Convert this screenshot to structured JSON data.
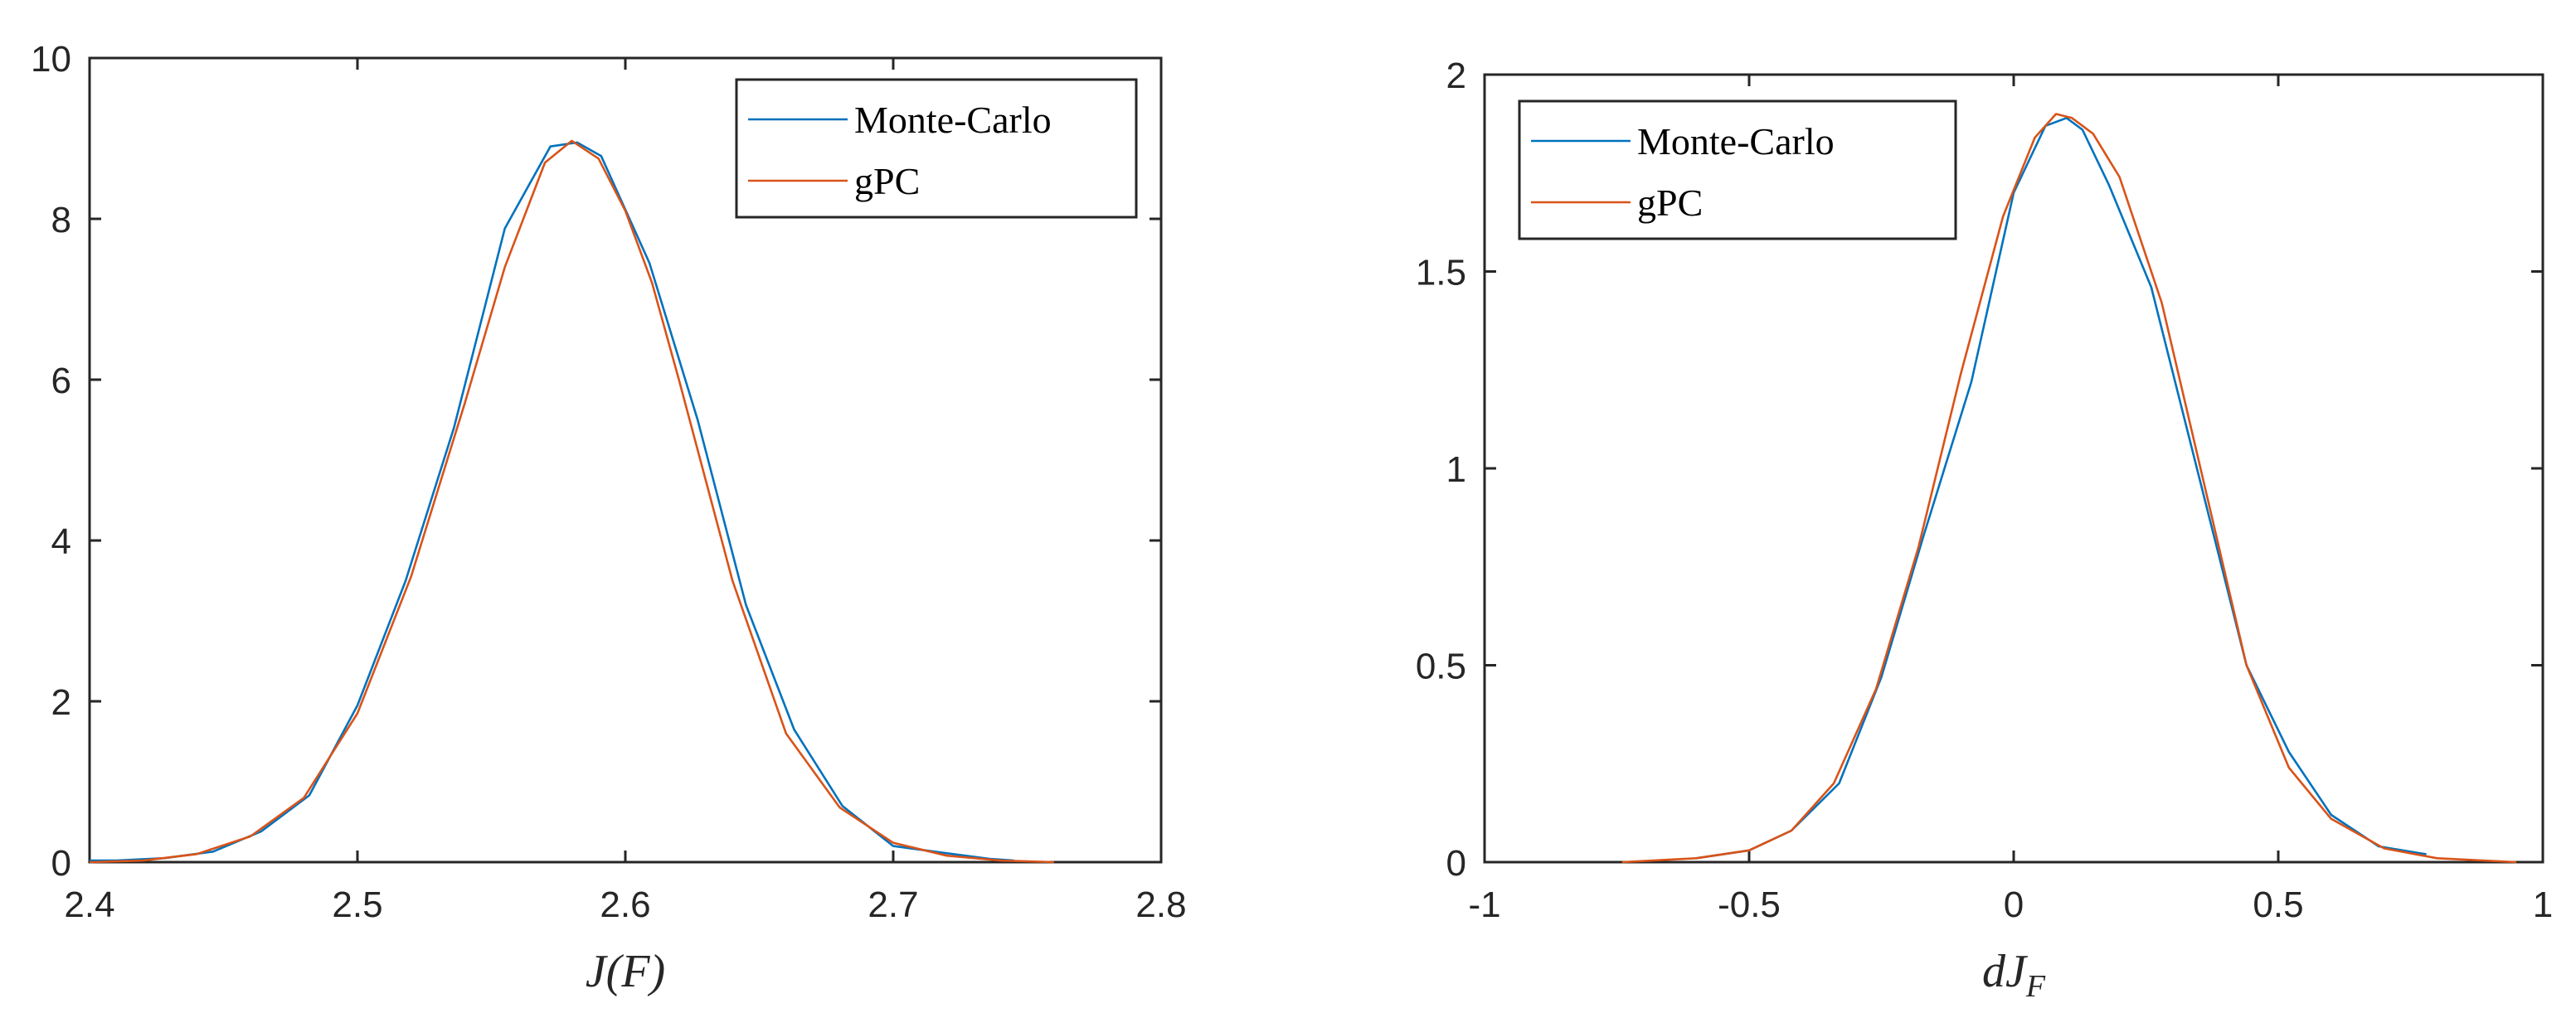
{
  "chart_data": [
    {
      "type": "line",
      "xlabel": "J(F)",
      "ylabel": "",
      "xlim": [
        2.4,
        2.8
      ],
      "ylim": [
        0,
        10
      ],
      "xticks": [
        "2.4",
        "2.5",
        "2.6",
        "2.7",
        "2.8"
      ],
      "yticks": [
        "0",
        "2",
        "4",
        "6",
        "8",
        "10"
      ],
      "legend_position": "top-right",
      "series": [
        {
          "name": "Monte-Carlo",
          "color": "#0072BD",
          "x": [
            2.4,
            2.41,
            2.428,
            2.446,
            2.464,
            2.482,
            2.5,
            2.518,
            2.536,
            2.555,
            2.572,
            2.582,
            2.591,
            2.609,
            2.627,
            2.645,
            2.663,
            2.681,
            2.7,
            2.718,
            2.736,
            2.745
          ],
          "y": [
            0.02,
            0.02,
            0.05,
            0.13,
            0.38,
            0.83,
            1.95,
            3.5,
            5.4,
            7.88,
            8.9,
            8.95,
            8.78,
            7.45,
            5.5,
            3.2,
            1.65,
            0.7,
            0.2,
            0.12,
            0.04,
            0.02
          ]
        },
        {
          "name": "gPC",
          "color": "#D95319",
          "x": [
            2.4,
            2.42,
            2.44,
            2.46,
            2.48,
            2.5,
            2.52,
            2.54,
            2.555,
            2.57,
            2.58,
            2.59,
            2.6,
            2.61,
            2.62,
            2.64,
            2.66,
            2.68,
            2.7,
            2.72,
            2.74,
            2.76
          ],
          "y": [
            0.0,
            0.02,
            0.1,
            0.32,
            0.8,
            1.85,
            3.55,
            5.7,
            7.4,
            8.7,
            8.97,
            8.75,
            8.1,
            7.2,
            6.0,
            3.5,
            1.6,
            0.68,
            0.24,
            0.08,
            0.02,
            0.0
          ]
        }
      ]
    },
    {
      "type": "line",
      "xlabel": "dJ_F",
      "ylabel": "",
      "xlim": [
        -1,
        1
      ],
      "ylim": [
        0,
        2
      ],
      "xticks": [
        "-1",
        "-0.5",
        "0",
        "0.5",
        "1"
      ],
      "yticks": [
        "0",
        "0.5",
        "1",
        "1.5",
        "2"
      ],
      "legend_position": "top-left",
      "series": [
        {
          "name": "Monte-Carlo",
          "color": "#0072BD",
          "x": [
            -0.6,
            -0.5,
            -0.42,
            -0.33,
            -0.25,
            -0.17,
            -0.08,
            0.0,
            0.06,
            0.1,
            0.13,
            0.18,
            0.26,
            0.35,
            0.44,
            0.52,
            0.6,
            0.69,
            0.78
          ],
          "y": [
            0.01,
            0.03,
            0.08,
            0.2,
            0.47,
            0.83,
            1.22,
            1.7,
            1.87,
            1.89,
            1.86,
            1.72,
            1.46,
            0.98,
            0.5,
            0.28,
            0.12,
            0.04,
            0.02
          ]
        },
        {
          "name": "gPC",
          "color": "#D95319",
          "x": [
            -0.74,
            -0.6,
            -0.5,
            -0.42,
            -0.34,
            -0.26,
            -0.18,
            -0.1,
            -0.02,
            0.04,
            0.08,
            0.11,
            0.15,
            0.2,
            0.28,
            0.36,
            0.44,
            0.52,
            0.6,
            0.7,
            0.8,
            0.95
          ],
          "y": [
            0.0,
            0.01,
            0.03,
            0.08,
            0.2,
            0.44,
            0.8,
            1.24,
            1.64,
            1.84,
            1.9,
            1.89,
            1.85,
            1.74,
            1.42,
            0.96,
            0.5,
            0.24,
            0.11,
            0.035,
            0.01,
            0.0
          ]
        }
      ]
    }
  ]
}
